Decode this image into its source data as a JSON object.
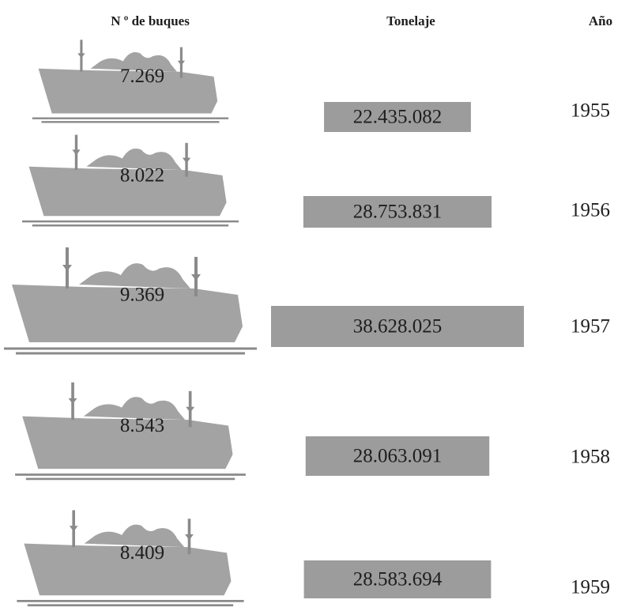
{
  "chart_data": {
    "type": "pictogram",
    "categories": [
      "1955",
      "1956",
      "1957",
      "1958",
      "1959"
    ],
    "series": [
      {
        "name": "N º de buques",
        "color": "#a3a3a3",
        "values": [
          7269,
          8022,
          9369,
          8543,
          8409
        ],
        "value_labels": [
          "7.269",
          "8.022",
          "9.369",
          "8.543",
          "8.409"
        ]
      },
      {
        "name": "Tonelaje",
        "color": "#9c9c9c",
        "values": [
          22435082,
          28753831,
          38628025,
          28063091,
          28583694
        ],
        "value_labels": [
          "22.435.082",
          "28.753.831",
          "38.628.025",
          "28.063.091",
          "28.583.694"
        ]
      }
    ],
    "category_label": "Año"
  }
}
